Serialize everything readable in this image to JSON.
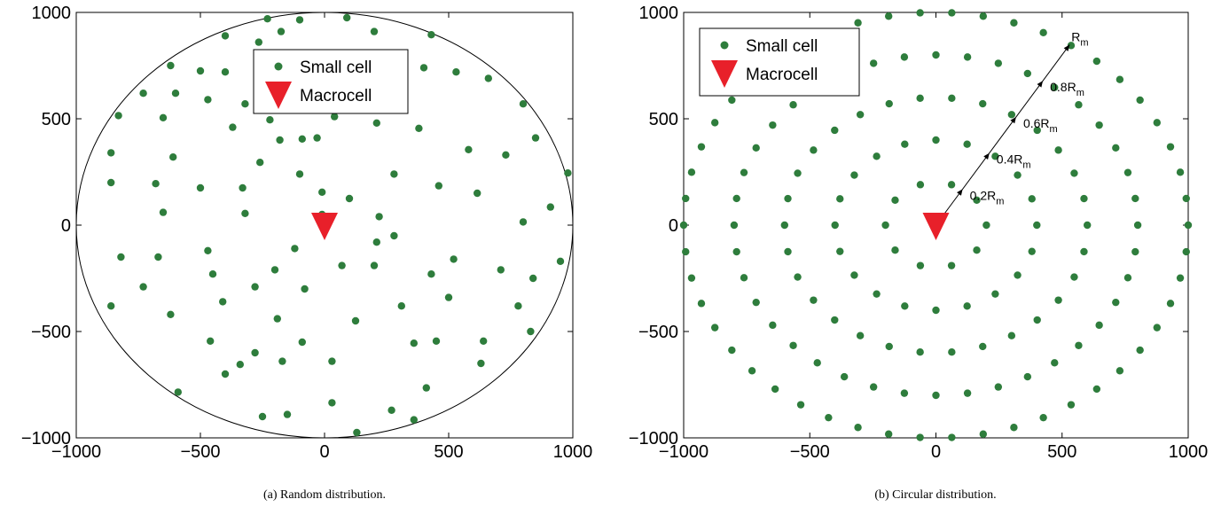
{
  "chart_data": [
    {
      "type": "scatter",
      "caption": "(a) Random distribution.",
      "xlim": [
        -1000,
        1000
      ],
      "ylim": [
        -1000,
        1000
      ],
      "xticks": [
        -1000,
        -500,
        0,
        500,
        1000
      ],
      "yticks": [
        -1000,
        -500,
        0,
        500,
        1000
      ],
      "boundary_circle_radius": 1000,
      "legend": {
        "placement": "top-center",
        "entries": [
          "Small cell",
          "Macrocell"
        ]
      },
      "colors": {
        "small_cell": "#2e7d3c",
        "macrocell": "#e8202a"
      },
      "series": [
        {
          "name": "Small cell",
          "marker": "circle",
          "points": [
            [
              -230,
              970
            ],
            [
              -100,
              965
            ],
            [
              90,
              975
            ],
            [
              200,
              910
            ],
            [
              -175,
              910
            ],
            [
              -265,
              860
            ],
            [
              -400,
              890
            ],
            [
              430,
              895
            ],
            [
              -80,
              800
            ],
            [
              -150,
              775
            ],
            [
              -20,
              770
            ],
            [
              -620,
              750
            ],
            [
              -500,
              725
            ],
            [
              -400,
              720
            ],
            [
              -220,
              645
            ],
            [
              -140,
              640
            ],
            [
              400,
              740
            ],
            [
              530,
              720
            ],
            [
              660,
              690
            ],
            [
              -730,
              620
            ],
            [
              -600,
              620
            ],
            [
              -260,
              580
            ],
            [
              -320,
              570
            ],
            [
              -470,
              590
            ],
            [
              -200,
              560
            ],
            [
              -830,
              515
            ],
            [
              -650,
              505
            ],
            [
              40,
              510
            ],
            [
              210,
              480
            ],
            [
              -220,
              495
            ],
            [
              -370,
              460
            ],
            [
              380,
              455
            ],
            [
              800,
              570
            ],
            [
              850,
              410
            ],
            [
              -180,
              400
            ],
            [
              -90,
              405
            ],
            [
              -30,
              410
            ],
            [
              580,
              355
            ],
            [
              -860,
              340
            ],
            [
              -610,
              320
            ],
            [
              730,
              330
            ],
            [
              980,
              245
            ],
            [
              -260,
              295
            ],
            [
              -100,
              240
            ],
            [
              280,
              240
            ],
            [
              460,
              185
            ],
            [
              -680,
              195
            ],
            [
              -860,
              200
            ],
            [
              -500,
              175
            ],
            [
              -330,
              175
            ],
            [
              -10,
              155
            ],
            [
              100,
              125
            ],
            [
              615,
              150
            ],
            [
              -650,
              60
            ],
            [
              -320,
              55
            ],
            [
              -10,
              50
            ],
            [
              220,
              40
            ],
            [
              910,
              85
            ],
            [
              800,
              15
            ],
            [
              -820,
              -150
            ],
            [
              -670,
              -150
            ],
            [
              -470,
              -120
            ],
            [
              -120,
              -110
            ],
            [
              210,
              -80
            ],
            [
              280,
              -50
            ],
            [
              520,
              -160
            ],
            [
              950,
              -170
            ],
            [
              -200,
              -210
            ],
            [
              70,
              -190
            ],
            [
              200,
              -190
            ],
            [
              -450,
              -230
            ],
            [
              -280,
              -290
            ],
            [
              -730,
              -290
            ],
            [
              -80,
              -300
            ],
            [
              430,
              -230
            ],
            [
              710,
              -210
            ],
            [
              840,
              -250
            ],
            [
              -860,
              -380
            ],
            [
              -410,
              -360
            ],
            [
              310,
              -380
            ],
            [
              500,
              -340
            ],
            [
              780,
              -380
            ],
            [
              -620,
              -420
            ],
            [
              -190,
              -440
            ],
            [
              125,
              -450
            ],
            [
              -460,
              -545
            ],
            [
              -90,
              -550
            ],
            [
              360,
              -555
            ],
            [
              450,
              -545
            ],
            [
              640,
              -545
            ],
            [
              830,
              -500
            ],
            [
              -280,
              -600
            ],
            [
              -340,
              -655
            ],
            [
              -400,
              -700
            ],
            [
              -170,
              -640
            ],
            [
              30,
              -640
            ],
            [
              630,
              -650
            ],
            [
              410,
              -765
            ],
            [
              -590,
              -785
            ],
            [
              30,
              -835
            ],
            [
              270,
              -870
            ],
            [
              -250,
              -900
            ],
            [
              -150,
              -890
            ],
            [
              360,
              -915
            ],
            [
              130,
              -975
            ]
          ]
        },
        {
          "name": "Macrocell",
          "marker": "triangle-down",
          "points": [
            [
              0,
              0
            ]
          ]
        }
      ]
    },
    {
      "type": "scatter",
      "caption": "(b) Circular distribution.",
      "xlim": [
        -1000,
        1000
      ],
      "ylim": [
        -1000,
        1000
      ],
      "xticks": [
        -1000,
        -500,
        0,
        500,
        1000
      ],
      "yticks": [
        -1000,
        -500,
        0,
        500,
        1000
      ],
      "legend": {
        "placement": "top-left",
        "entries": [
          "Small cell",
          "Macrocell"
        ]
      },
      "colors": {
        "small_cell": "#2e7d3c",
        "macrocell": "#e8202a"
      },
      "rings": [
        {
          "radius": 200,
          "count": 10
        },
        {
          "radius": 400,
          "count": 20
        },
        {
          "radius": 600,
          "count": 30
        },
        {
          "radius": 800,
          "count": 40
        },
        {
          "radius": 1000,
          "count": 50
        }
      ],
      "radius_arrow": {
        "angle_deg": 58,
        "labels": [
          {
            "main": "0.2R",
            "sub": "m"
          },
          {
            "main": "0.4R",
            "sub": "m"
          },
          {
            "main": "0.6R",
            "sub": "m"
          },
          {
            "main": "0.8R",
            "sub": "m"
          },
          {
            "main": "R",
            "sub": "m"
          }
        ]
      },
      "macrocell_point": [
        0,
        0
      ]
    }
  ]
}
